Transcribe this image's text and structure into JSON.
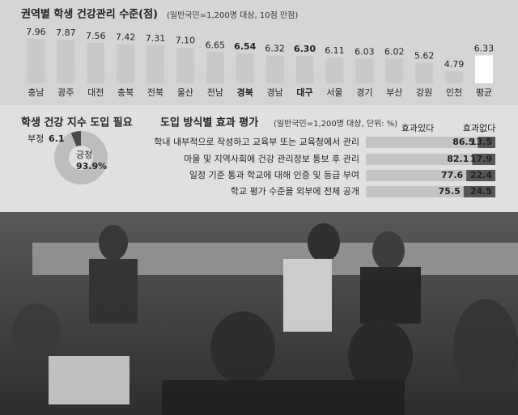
{
  "chart_data": [
    {
      "type": "bar",
      "title": "권역별 학생 건강관리 수준(점)",
      "subtitle": "(일반국민=1,200명 대상, 10점 만점)",
      "categories": [
        "충남",
        "광주",
        "대전",
        "충북",
        "전북",
        "울산",
        "전남",
        "경북",
        "경남",
        "대구",
        "서울",
        "경기",
        "부산",
        "강원",
        "인천",
        "평균"
      ],
      "values": [
        7.96,
        7.87,
        7.56,
        7.42,
        7.31,
        7.1,
        6.65,
        6.54,
        6.32,
        6.3,
        6.11,
        6.03,
        6.02,
        5.62,
        4.79,
        6.33
      ],
      "value_labels": [
        "7.96",
        "7.87",
        "7.56",
        "7.42",
        "7.31",
        "7.10",
        "6.65",
        "6.54",
        "6.32",
        "6.30",
        "6.11",
        "6.03",
        "6.02",
        "5.62",
        "4.79",
        "6.33"
      ],
      "colors": [
        "#c9c9c9",
        "#c9c9c9",
        "#c9c9c9",
        "#c9c9c9",
        "#c9c9c9",
        "#c9c9c9",
        "#c9c9c9",
        "#c9c9c9",
        "#c9c9c9",
        "#c9c9c9",
        "#c9c9c9",
        "#c9c9c9",
        "#c9c9c9",
        "#c9c9c9",
        "#c9c9c9",
        "#ffffff"
      ],
      "bold_categories": [
        7,
        9
      ],
      "ylim": [
        3.6,
        8.5
      ]
    },
    {
      "type": "pie",
      "title": "학생 건강 지수 도입 필요",
      "categories": [
        "부정",
        "긍정"
      ],
      "values": [
        6.1,
        93.9
      ],
      "value_labels": [
        "6.1",
        "93.9%"
      ],
      "colors": [
        "#4a4a4a",
        "#bdbdbd"
      ]
    },
    {
      "type": "stacked-hbar",
      "title": "도입 방식별 효과 평가",
      "subtitle": "(일반국민=1,200명 대상, 단위: %)",
      "categories": [
        "학내 내부적으로 작성하고 교육부 또는 교육청에서 관리",
        "마을 및 지역사회에 건강 관리정보 통보 후 관리",
        "일정 기준 통과 학교에 대해 인증 및 등급 부여",
        "학교 평가 수준을 외부에 전체 공개"
      ],
      "series": [
        {
          "name": "효과있다",
          "color": "#c4c4c4",
          "values": [
            86.5,
            82.1,
            77.6,
            75.5
          ]
        },
        {
          "name": "효과없다",
          "color": "#555555",
          "values": [
            13.5,
            17.9,
            22.4,
            24.5
          ]
        }
      ],
      "xlim": [
        0,
        100
      ]
    }
  ]
}
